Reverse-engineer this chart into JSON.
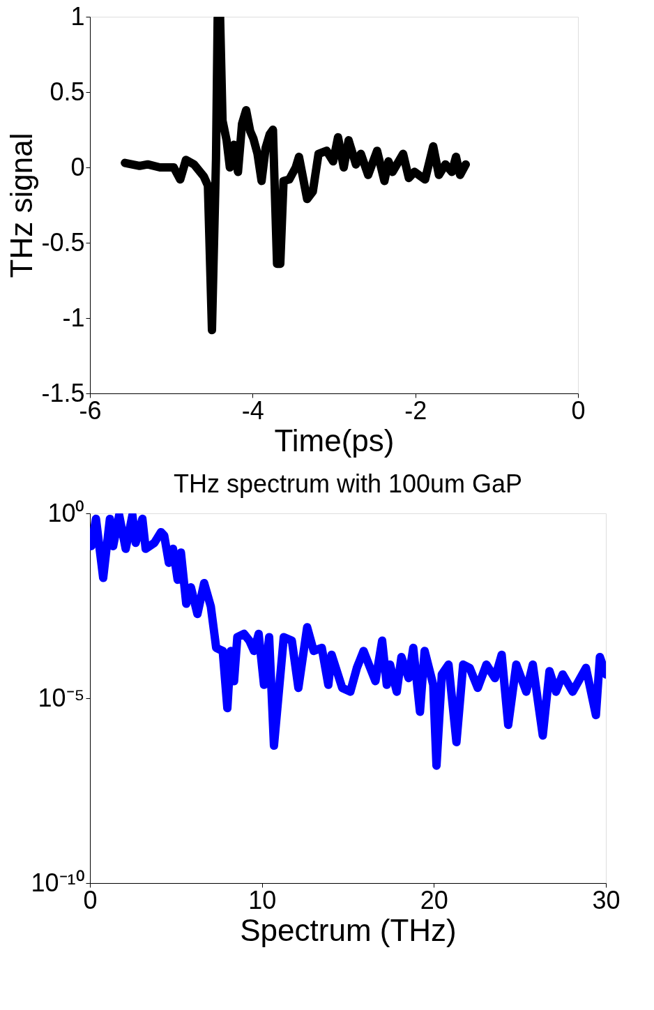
{
  "chart_data": [
    {
      "type": "line",
      "xlabel": "Time(ps)",
      "ylabel": "THz signal",
      "xlim": [
        -6,
        0
      ],
      "ylim": [
        -1.5,
        1
      ],
      "xticks": [
        -6,
        -4,
        -2,
        0
      ],
      "yticks": [
        -1.5,
        -1,
        -0.5,
        0,
        0.5,
        1
      ],
      "grid": false,
      "series": [
        {
          "color": "#000000",
          "x": [
            -5.57,
            -5.39,
            -5.29,
            -5.14,
            -4.97,
            -4.89,
            -4.82,
            -4.72,
            -4.6,
            -4.55,
            -4.5,
            -4.45,
            -4.43,
            -4.4,
            -4.37,
            -4.32,
            -4.28,
            -4.23,
            -4.18,
            -4.13,
            -4.08,
            -4.03,
            -3.99,
            -3.94,
            -3.89,
            -3.84,
            -3.79,
            -3.75,
            -3.7,
            -3.66,
            -3.62,
            -3.55,
            -3.47,
            -3.43,
            -3.33,
            -3.26,
            -3.19,
            -3.09,
            -3.01,
            -2.95,
            -2.88,
            -2.82,
            -2.73,
            -2.67,
            -2.58,
            -2.47,
            -2.38,
            -2.33,
            -2.28,
            -2.15,
            -2.08,
            -2.01,
            -1.88,
            -1.78,
            -1.71,
            -1.63,
            -1.55,
            -1.5,
            -1.45,
            -1.38
          ],
          "values": [
            0.03,
            0.01,
            0.02,
            0,
            0,
            -0.08,
            0.05,
            0.02,
            -0.06,
            -0.12,
            -1.08,
            0.06,
            0.99,
            1.0,
            0.31,
            0.18,
            0,
            0.15,
            -0.03,
            0.29,
            0.38,
            0.24,
            0.19,
            0.09,
            -0.09,
            0.13,
            0.22,
            0.25,
            -0.64,
            -0.64,
            -0.09,
            -0.08,
            0,
            0.07,
            -0.21,
            -0.16,
            0.09,
            0.11,
            0.04,
            0.2,
            0,
            0.18,
            0.02,
            0.09,
            -0.05,
            0.11,
            -0.09,
            0.04,
            -0.03,
            0.09,
            -0.07,
            -0.03,
            -0.08,
            0.14,
            -0.05,
            0.02,
            -0.03,
            0.07,
            -0.05,
            0.02
          ]
        }
      ]
    },
    {
      "type": "line",
      "title": "THz spectrum with 100um GaP",
      "xlabel": "Spectrum (THz)",
      "xlim": [
        0,
        30
      ],
      "ylim": [
        1e-10,
        1
      ],
      "xticks": [
        0,
        10,
        20,
        30
      ],
      "yticks": [
        {
          "value": 1e-10,
          "label": "10⁻¹⁰"
        },
        {
          "value": 1e-05,
          "label": "10⁻⁵"
        },
        {
          "value": 1,
          "label": "10⁰"
        }
      ],
      "log": "y",
      "grid": false,
      "series": [
        {
          "color": "#0000ff",
          "x": [
            0.08,
            0.35,
            0.77,
            1.16,
            1.35,
            1.7,
            2.08,
            2.47,
            2.66,
            3.05,
            3.24,
            3.75,
            4.13,
            4.32,
            4.59,
            4.83,
            5.1,
            5.29,
            5.6,
            5.87,
            6.25,
            6.64,
            7.03,
            7.34,
            7.72,
            7.99,
            8.19,
            8.38,
            8.57,
            8.96,
            9.27,
            9.54,
            9.81,
            10.12,
            10.42,
            10.7,
            11.27,
            11.74,
            12.12,
            12.63,
            13.01,
            13.48,
            13.86,
            14.05,
            14.67,
            15.14,
            15.52,
            15.91,
            16.22,
            16.6,
            16.99,
            17.26,
            17.45,
            17.84,
            18.11,
            18.53,
            18.8,
            19.19,
            19.46,
            19.96,
            20.15,
            20.46,
            20.85,
            21.31,
            21.7,
            22.08,
            22.55,
            23.05,
            23.55,
            23.94,
            24.32,
            24.79,
            25.37,
            25.75,
            26.33,
            26.72,
            27.1,
            27.49,
            28.07,
            28.84,
            29.42,
            29.65,
            30
          ],
          "values": [
            0.13,
            0.71,
            0.018,
            0.71,
            0.13,
            0.89,
            0.11,
            0.89,
            0.16,
            0.71,
            0.11,
            0.16,
            0.31,
            0.25,
            0.046,
            0.11,
            0.016,
            0.087,
            0.0036,
            0.01,
            0.0019,
            0.013,
            0.003,
            0.00023,
            0.00019,
            5.4e-06,
            0.00019,
            2.9e-05,
            0.00045,
            0.00055,
            0.00036,
            0.00019,
            0.00055,
            2.3e-05,
            0.00045,
            5.2e-07,
            0.00045,
            0.00036,
            1.9e-05,
            0.00083,
            0.00019,
            0.00023,
            2.3e-05,
            0.00015,
            1.9e-05,
            1.5e-05,
            6.6e-05,
            0.00019,
            8.1e-05,
            2.9e-05,
            0.00036,
            2.3e-05,
            8.1e-05,
            1.5e-05,
            0.00013,
            3.5e-05,
            0.00023,
            4.3e-06,
            0.00019,
            2.3e-05,
            1.5e-07,
            4.4e-05,
            8.1e-05,
            6.5e-07,
            8.1e-05,
            6.6e-05,
            1.9e-05,
            8.1e-05,
            3.5e-05,
            0.00015,
            1.9e-06,
            8.1e-05,
            1.5e-05,
            8.1e-05,
            9.8e-07,
            5.4e-05,
            1.5e-05,
            4.4e-05,
            1.5e-05,
            6.6e-05,
            3.5e-06,
            0.00013,
            4.4e-05
          ]
        }
      ]
    }
  ]
}
